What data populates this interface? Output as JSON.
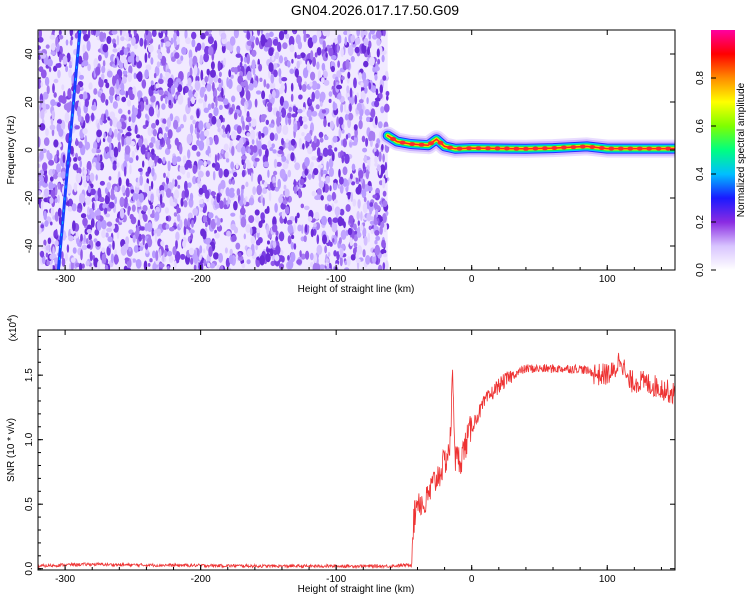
{
  "title": "GN04.2026.017.17.50.G09",
  "chart_data": [
    {
      "type": "heatmap",
      "xlabel": "Height of straight line (km)",
      "ylabel": "Frequency (Hz)",
      "xlim": [
        -320,
        150
      ],
      "ylim": [
        -50,
        50
      ],
      "xticks": [
        -300,
        -200,
        -100,
        0,
        100
      ],
      "xtick_labels": [
        "-300",
        "-200",
        "-100",
        "0",
        "100"
      ],
      "yticks": [
        -40,
        -20,
        0,
        20,
        40
      ],
      "ytick_labels": [
        "-40",
        "-20",
        "0",
        "20",
        "40"
      ],
      "noise_region_x": [
        -320,
        -62
      ],
      "signal_ridge": {
        "frequency_hz": 0.8,
        "x_start": -62,
        "x_end": 150,
        "points": [
          [
            -62,
            6
          ],
          [
            -55,
            3.5
          ],
          [
            -45,
            2.5
          ],
          [
            -32,
            2
          ],
          [
            -26,
            4.5
          ],
          [
            -20,
            1.5
          ],
          [
            -12,
            0.5
          ],
          [
            0,
            0.8
          ],
          [
            40,
            0.5
          ],
          [
            60,
            0.8
          ],
          [
            85,
            1.5
          ],
          [
            100,
            0.6
          ],
          [
            150,
            0.6
          ]
        ]
      },
      "streak": {
        "x_top": -292,
        "x_bottom": -302,
        "note": ""
      },
      "colorbar": {
        "label": "Normalized spectral amplitude",
        "range": [
          0,
          1
        ],
        "ticks": [
          0.0,
          0.2,
          0.4,
          0.6,
          0.8
        ],
        "tick_labels": [
          "0.0",
          "0.2",
          "0.4",
          "0.6",
          "0.8"
        ],
        "colors": [
          "#ffffff",
          "#d8c4ff",
          "#8a2be2",
          "#1a1aff",
          "#00bfff",
          "#00ff80",
          "#7fff00",
          "#ffff00",
          "#ff8c00",
          "#ff0000",
          "#ff00a0"
        ]
      },
      "grid": false
    },
    {
      "type": "line",
      "xlabel": "Height of straight line (km)",
      "ylabel": "SNR (10 * v/v)",
      "y_multiplier_label": "(x10",
      "y_multiplier_exp": "4",
      "xlim": [
        -320,
        150
      ],
      "ylim": [
        -0.01,
        1.85
      ],
      "xticks": [
        -300,
        -200,
        -100,
        0,
        100
      ],
      "xtick_labels": [
        "-300",
        "-200",
        "-100",
        "0",
        "100"
      ],
      "yticks": [
        0.0,
        0.5,
        1.0,
        1.5
      ],
      "ytick_labels": [
        "0.0",
        "0.5",
        "1.0",
        "1.5"
      ],
      "series": [
        {
          "color": "#ee3333",
          "points": [
            [
              -320,
              0.02
            ],
            [
              -300,
              0.03
            ],
            [
              -280,
              0.035
            ],
            [
              -260,
              0.03
            ],
            [
              -200,
              0.025
            ],
            [
              -150,
              0.02
            ],
            [
              -100,
              0.02
            ],
            [
              -60,
              0.02
            ],
            [
              -45,
              0.03
            ],
            [
              -43,
              0.35
            ],
            [
              -40,
              0.55
            ],
            [
              -35,
              0.48
            ],
            [
              -30,
              0.62
            ],
            [
              -25,
              0.72
            ],
            [
              -20,
              0.82
            ],
            [
              -16,
              0.95
            ],
            [
              -14,
              1.5
            ],
            [
              -12,
              0.85
            ],
            [
              -8,
              0.85
            ],
            [
              -5,
              0.95
            ],
            [
              0,
              1.1
            ],
            [
              10,
              1.3
            ],
            [
              20,
              1.42
            ],
            [
              30,
              1.5
            ],
            [
              40,
              1.55
            ],
            [
              60,
              1.55
            ],
            [
              80,
              1.55
            ],
            [
              95,
              1.5
            ],
            [
              105,
              1.52
            ],
            [
              110,
              1.65
            ],
            [
              115,
              1.45
            ],
            [
              125,
              1.45
            ],
            [
              140,
              1.4
            ],
            [
              150,
              1.35
            ]
          ]
        }
      ],
      "grid": false
    }
  ]
}
